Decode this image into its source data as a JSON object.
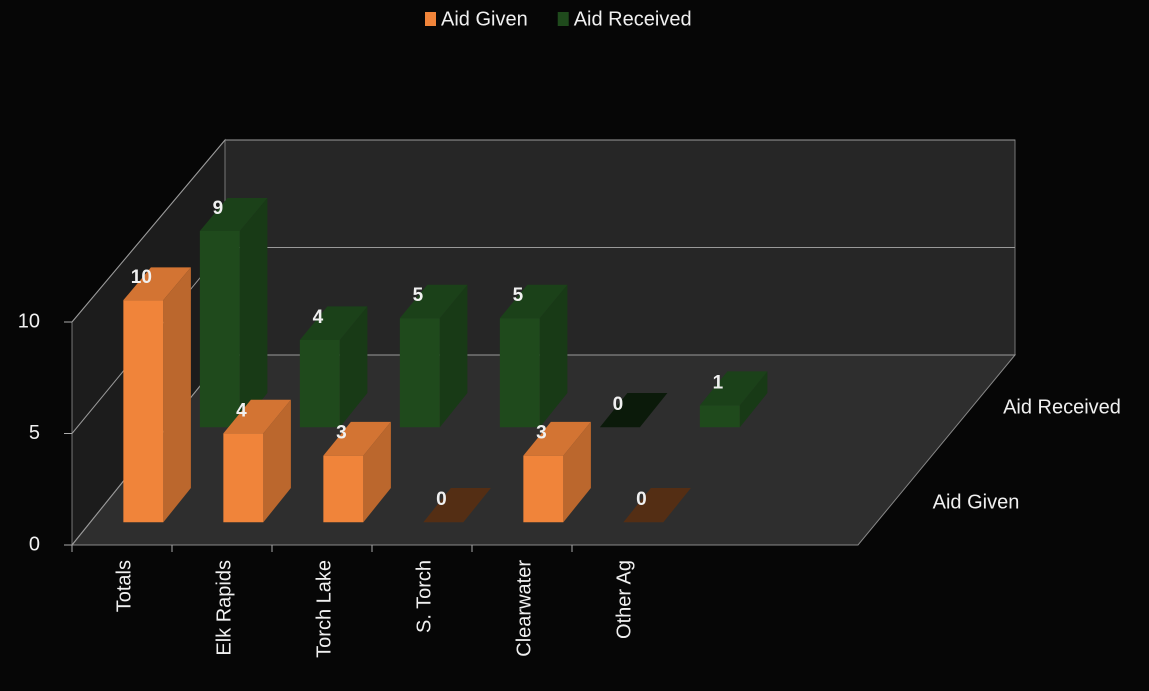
{
  "chart_data": {
    "type": "bar3d",
    "categories": [
      "Totals",
      "Elk Rapids",
      "Torch Lake",
      "S. Torch",
      "Clearwater",
      "Other Ag"
    ],
    "series": [
      {
        "name": "Aid Given",
        "color": "#f0843a",
        "values": [
          10,
          4,
          3,
          0,
          3,
          0
        ]
      },
      {
        "name": "Aid Received",
        "color": "#1f4a1c",
        "values": [
          9,
          4,
          5,
          5,
          0,
          1
        ]
      }
    ],
    "ylim": [
      0,
      10
    ],
    "yticks": [
      0,
      5,
      10
    ],
    "grid": true,
    "legend": "top"
  }
}
